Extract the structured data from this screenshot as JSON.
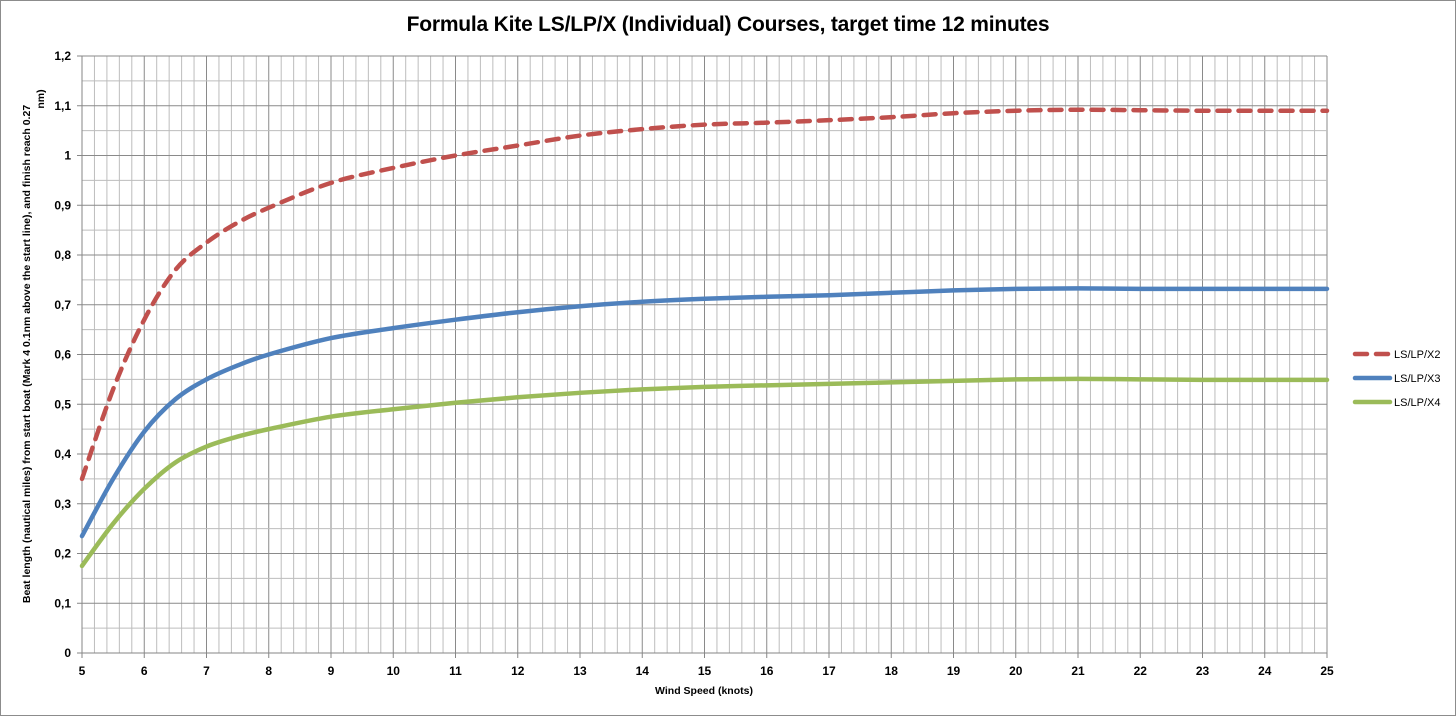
{
  "chart": {
    "title": "Formula Kite LS/LP/X (Individual) Courses, target time 12 minutes",
    "xlabel": "Wind Speed (knots)",
    "ylabel_line1": "Beat length (nautical miles) from start boat (Mark 4 0.1nm above the start line), and finish reach 0.27",
    "ylabel_line2": "nm)",
    "x_ticks": [
      "5",
      "6",
      "7",
      "8",
      "9",
      "10",
      "11",
      "12",
      "13",
      "14",
      "15",
      "16",
      "17",
      "18",
      "19",
      "20",
      "21",
      "22",
      "23",
      "24",
      "25"
    ],
    "y_ticks": [
      "0",
      "0,1",
      "0,2",
      "0,3",
      "0,4",
      "0,5",
      "0,6",
      "0,7",
      "0,8",
      "0,9",
      "1",
      "1,1",
      "1,2"
    ],
    "legend": [
      {
        "label": "LS/LP/X2",
        "color": "#c0504d",
        "style": "dashed"
      },
      {
        "label": "LS/LP/X3",
        "color": "#4f81bd",
        "style": "solid"
      },
      {
        "label": "LS/LP/X4",
        "color": "#9bbb59",
        "style": "solid"
      }
    ]
  },
  "chart_data": {
    "type": "line",
    "title": "Formula Kite LS/LP/X (Individual) Courses, target time 12 minutes",
    "xlabel": "Wind Speed (knots)",
    "ylabel": "Beat length (nautical miles) from start boat (Mark 4 0.1nm above the start line), and finish reach 0.27 nm)",
    "xlim": [
      5,
      25
    ],
    "ylim": [
      0,
      1.2
    ],
    "x_major_step": 1,
    "y_major_step": 0.1,
    "grid": true,
    "legend_position": "right",
    "x": [
      5,
      5.5,
      6,
      6.5,
      7,
      7.5,
      8,
      9,
      10,
      11,
      12,
      13,
      14,
      15,
      16,
      17,
      18,
      19,
      20,
      21,
      22,
      23,
      24,
      25
    ],
    "series": [
      {
        "name": "LS/LP/X2",
        "color": "#c0504d",
        "dash": "dashed",
        "values": [
          0.35,
          0.53,
          0.67,
          0.77,
          0.825,
          0.865,
          0.895,
          0.945,
          0.975,
          1.0,
          1.02,
          1.04,
          1.053,
          1.062,
          1.066,
          1.071,
          1.077,
          1.085,
          1.09,
          1.092,
          1.091,
          1.09,
          1.09,
          1.09
        ]
      },
      {
        "name": "LS/LP/X3",
        "color": "#4f81bd",
        "dash": "solid",
        "values": [
          0.235,
          0.35,
          0.445,
          0.51,
          0.55,
          0.578,
          0.6,
          0.633,
          0.653,
          0.67,
          0.685,
          0.697,
          0.706,
          0.712,
          0.716,
          0.719,
          0.724,
          0.729,
          0.732,
          0.733,
          0.732,
          0.732,
          0.732,
          0.732
        ]
      },
      {
        "name": "LS/LP/X4",
        "color": "#9bbb59",
        "dash": "solid",
        "values": [
          0.175,
          0.26,
          0.33,
          0.383,
          0.415,
          0.435,
          0.45,
          0.475,
          0.49,
          0.503,
          0.514,
          0.523,
          0.53,
          0.535,
          0.538,
          0.541,
          0.544,
          0.547,
          0.55,
          0.551,
          0.55,
          0.549,
          0.549,
          0.549
        ]
      }
    ]
  }
}
